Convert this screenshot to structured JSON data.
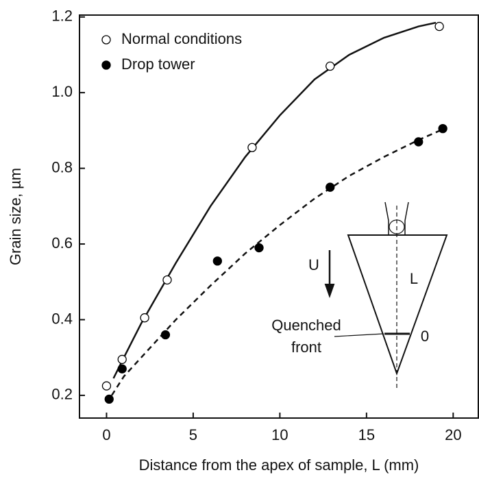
{
  "chart_data": {
    "type": "scatter",
    "xlabel": "Distance from the apex of sample, L (mm)",
    "ylabel": "Grain size, µm",
    "xlim": [
      -1.56,
      21.45
    ],
    "ylim": [
      0.14,
      1.205
    ],
    "xticks": [
      0,
      5,
      10,
      15,
      20
    ],
    "yticks": [
      0.2,
      0.4,
      0.6,
      0.8,
      {
        "value": 1,
        "label": "1.0"
      },
      1.2
    ],
    "legend": "upper left",
    "series": [
      {
        "name": "Normal conditions",
        "marker": "open",
        "color": "#000000",
        "x": [
          0,
          0.9,
          2.2,
          3.5,
          8.4,
          12.9,
          19.2
        ],
        "values": [
          0.225,
          0.295,
          0.405,
          0.505,
          0.855,
          1.07,
          1.175
        ]
      },
      {
        "name": "Drop tower",
        "marker": "filled",
        "color": "#000000",
        "x": [
          0.15,
          0.9,
          3.4,
          6.4,
          8.8,
          12.9,
          18,
          19.4
        ],
        "values": [
          0.19,
          0.27,
          0.36,
          0.555,
          0.59,
          0.75,
          0.87,
          0.905
        ]
      }
    ],
    "curves": [
      {
        "style": "solid",
        "x": [
          0.4,
          1,
          2,
          3,
          4,
          6,
          8,
          10,
          12,
          14,
          16,
          18,
          19
        ],
        "values": [
          0.245,
          0.3,
          0.39,
          0.47,
          0.55,
          0.7,
          0.83,
          0.94,
          1.035,
          1.1,
          1.145,
          1.175,
          1.185
        ]
      },
      {
        "style": "dashed",
        "x": [
          0.3,
          1,
          2,
          4,
          6,
          8,
          10,
          12,
          14,
          16,
          18,
          19.5
        ],
        "values": [
          0.2,
          0.25,
          0.3,
          0.4,
          0.49,
          0.575,
          0.65,
          0.72,
          0.78,
          0.83,
          0.875,
          0.905
        ]
      }
    ]
  },
  "inset": {
    "arrow_label": "U",
    "length_label": "L",
    "front_label_1": "Quenched",
    "front_label_2": "front",
    "zero_label": "0"
  }
}
